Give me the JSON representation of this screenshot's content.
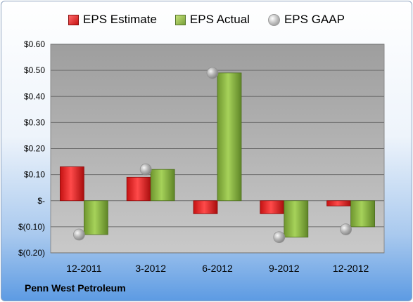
{
  "legend": {
    "estimate": "EPS Estimate",
    "actual": "EPS Actual",
    "gaap": "EPS GAAP"
  },
  "company": "Penn West Petroleum",
  "colors": {
    "estimate": "#d81e1e",
    "actual": "#8cb848",
    "gaap": "#a8a8a8",
    "plot_bg": "#b3b3b3"
  },
  "chart_data": {
    "type": "bar",
    "categories": [
      "12-2011",
      "3-2012",
      "6-2012",
      "9-2012",
      "12-2012"
    ],
    "series": [
      {
        "name": "EPS Estimate",
        "values": [
          0.13,
          0.09,
          -0.05,
          -0.05,
          -0.02
        ]
      },
      {
        "name": "EPS Actual",
        "values": [
          -0.13,
          0.12,
          0.49,
          -0.14,
          -0.1
        ]
      },
      {
        "name": "EPS GAAP",
        "values": [
          -0.13,
          0.12,
          0.49,
          -0.14,
          -0.11
        ]
      }
    ],
    "ylim": [
      -0.2,
      0.6
    ],
    "yticks": [
      0.6,
      0.5,
      0.4,
      0.3,
      0.2,
      0.1,
      0,
      -0.1,
      -0.2
    ],
    "ytick_labels": [
      "$0.60",
      "$0.50",
      "$0.40",
      "$0.30",
      "$0.20",
      "$0.10",
      "$-",
      "$(0.10)",
      "$(0.20)"
    ],
    "grid": true,
    "legend_position": "top"
  }
}
